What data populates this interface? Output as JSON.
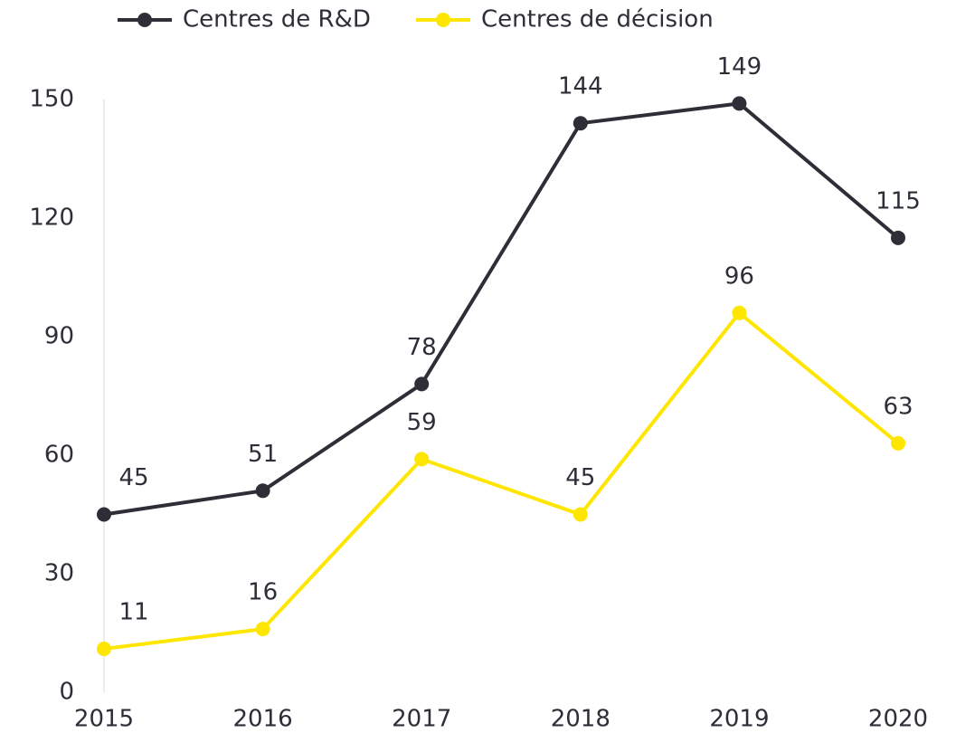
{
  "chart_data": {
    "type": "line",
    "categories": [
      "2015",
      "2016",
      "2017",
      "2018",
      "2019",
      "2020"
    ],
    "series": [
      {
        "name": "Centres de R&D",
        "color": "#2e2e38",
        "values": [
          45,
          51,
          78,
          144,
          149,
          115
        ]
      },
      {
        "name": "Centres de décision",
        "color": "#ffe600",
        "values": [
          11,
          16,
          59,
          45,
          96,
          63
        ]
      }
    ],
    "ylim": [
      0,
      150
    ],
    "yticks": [
      0,
      30,
      60,
      90,
      120,
      150
    ],
    "grid": false,
    "legend": "top"
  }
}
